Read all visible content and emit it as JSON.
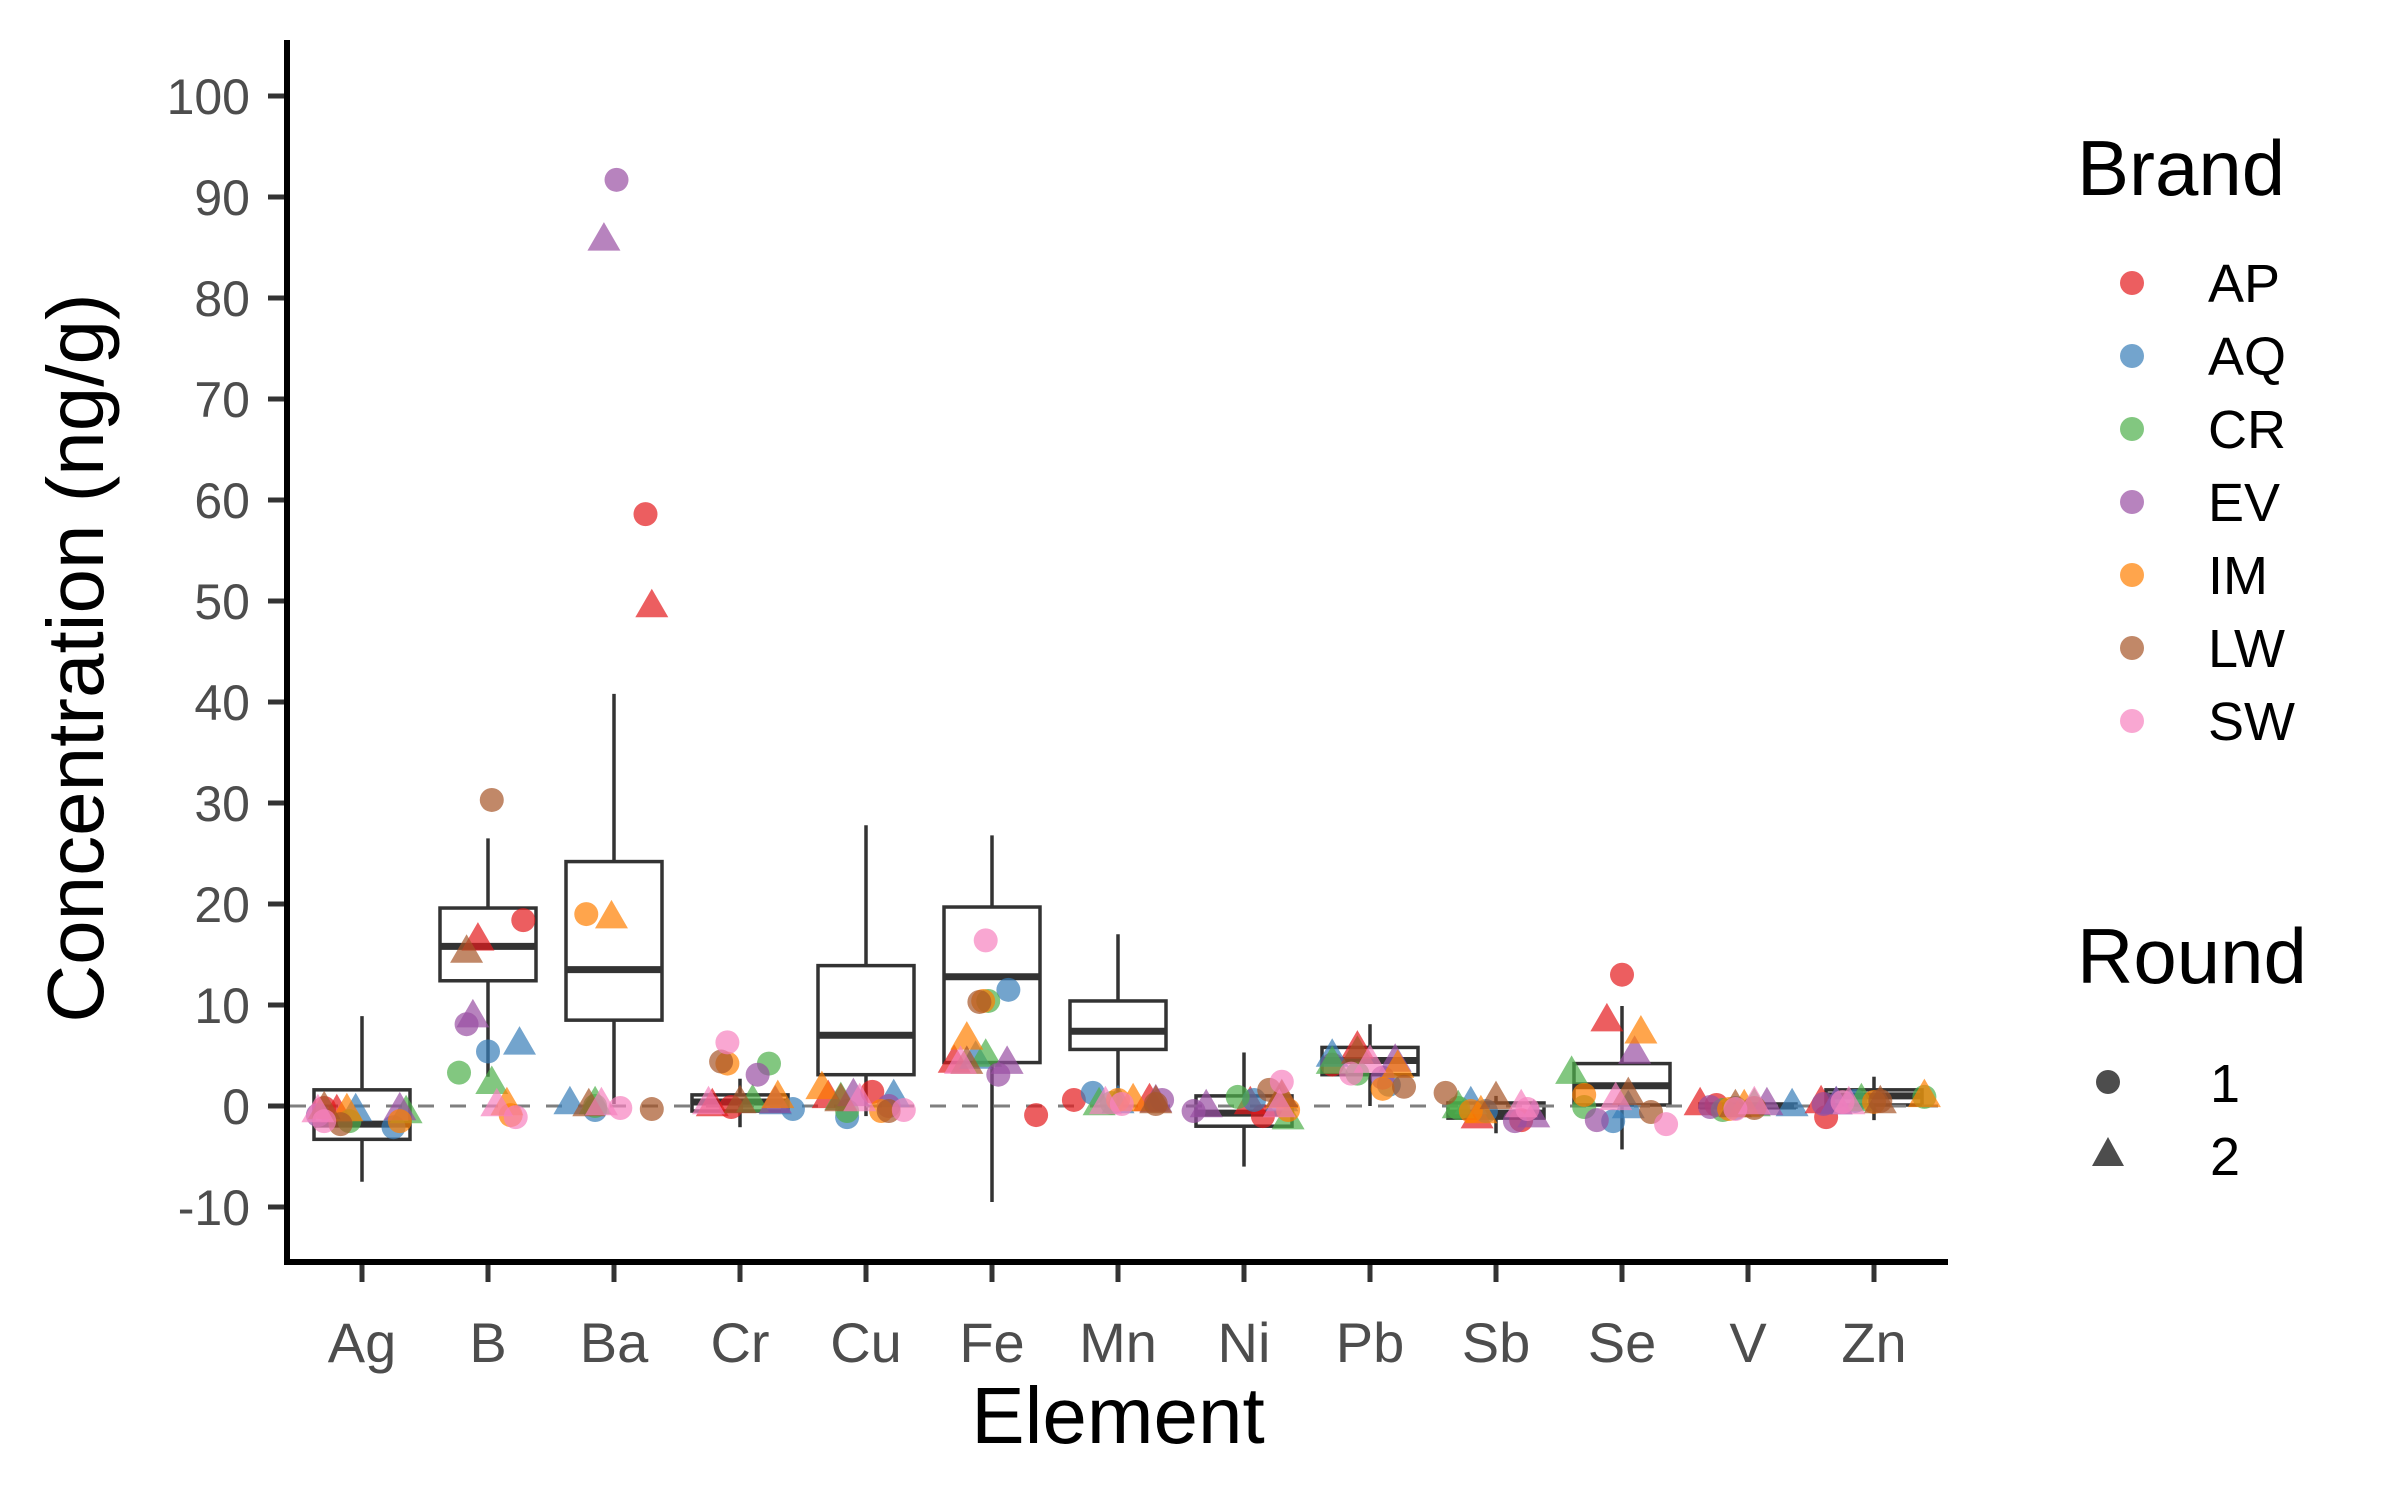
{
  "chart_data": {
    "type": "box+scatter",
    "title": "",
    "xlabel": "Element",
    "ylabel": "Concentration (ng/g)",
    "ylim": [
      -15.5,
      104.5
    ],
    "yticks": [
      -10,
      0,
      10,
      20,
      30,
      40,
      50,
      60,
      70,
      80,
      90,
      100
    ],
    "reference_line": {
      "y": 0,
      "style": "dashed",
      "color": "#7f7f7f"
    },
    "grid": false,
    "categories": [
      "Ag",
      "B",
      "Ba",
      "Cr",
      "Cu",
      "Fe",
      "Mn",
      "Ni",
      "Pb",
      "Sb",
      "Se",
      "V",
      "Zn"
    ],
    "boxes": [
      {
        "element": "Ag",
        "lower_whisker": -7.5,
        "q1": -3.3,
        "median": -1.8,
        "q3": 1.6,
        "upper_whisker": 8.9
      },
      {
        "element": "B",
        "lower_whisker": 2.9,
        "q1": 12.4,
        "median": 15.8,
        "q3": 19.6,
        "upper_whisker": 26.5
      },
      {
        "element": "Ba",
        "lower_whisker": 0.2,
        "q1": 8.5,
        "median": 13.5,
        "q3": 24.2,
        "upper_whisker": 40.8
      },
      {
        "element": "Cr",
        "lower_whisker": -2.1,
        "q1": -0.5,
        "median": 0.4,
        "q3": 1.1,
        "upper_whisker": 2.7
      },
      {
        "element": "Cu",
        "lower_whisker": -1.0,
        "q1": 3.1,
        "median": 7.0,
        "q3": 13.9,
        "upper_whisker": 27.8
      },
      {
        "element": "Fe",
        "lower_whisker": -9.5,
        "q1": 4.3,
        "median": 12.8,
        "q3": 19.7,
        "upper_whisker": 26.8
      },
      {
        "element": "Mn",
        "lower_whisker": 0.0,
        "q1": 5.6,
        "median": 7.4,
        "q3": 10.4,
        "upper_whisker": 17.0
      },
      {
        "element": "Ni",
        "lower_whisker": -6.0,
        "q1": -2.0,
        "median": -0.7,
        "q3": 1.0,
        "upper_whisker": 5.3
      },
      {
        "element": "Pb",
        "lower_whisker": 0.0,
        "q1": 3.1,
        "median": 4.5,
        "q3": 5.8,
        "upper_whisker": 8.1
      },
      {
        "element": "Sb",
        "lower_whisker": -2.7,
        "q1": -1.2,
        "median": -0.7,
        "q3": 0.3,
        "upper_whisker": 1.0
      },
      {
        "element": "Se",
        "lower_whisker": -4.3,
        "q1": 0.1,
        "median": 2.0,
        "q3": 4.2,
        "upper_whisker": 9.9
      },
      {
        "element": "V",
        "lower_whisker": -0.3,
        "q1": -0.1,
        "median": 0.0,
        "q3": 0.2,
        "upper_whisker": 0.4
      },
      {
        "element": "Zn",
        "lower_whisker": -1.4,
        "q1": 0.1,
        "median": 1.0,
        "q3": 1.6,
        "upper_whisker": 2.9
      }
    ],
    "point_fields": [
      "element",
      "brand",
      "round",
      "x_jitter",
      "value"
    ],
    "points": [
      [
        "Ag",
        "AP",
        1,
        -0.3,
        -0.2
      ],
      [
        "Ag",
        "AP",
        2,
        -0.2,
        -0.5
      ],
      [
        "Ag",
        "AQ",
        1,
        0.25,
        -2.1
      ],
      [
        "Ag",
        "AQ",
        2,
        -0.05,
        -0.4
      ],
      [
        "Ag",
        "CR",
        1,
        -0.1,
        -1.5
      ],
      [
        "Ag",
        "CR",
        2,
        0.35,
        -0.6
      ],
      [
        "Ag",
        "EV",
        1,
        -0.35,
        -0.9
      ],
      [
        "Ag",
        "EV",
        2,
        0.3,
        -0.3
      ],
      [
        "Ag",
        "IM",
        1,
        0.3,
        -1.5
      ],
      [
        "Ag",
        "IM",
        2,
        -0.12,
        -0.4
      ],
      [
        "Ag",
        "LW",
        1,
        -0.17,
        -1.8
      ],
      [
        "Ag",
        "LW",
        2,
        -0.3,
        -0.2
      ],
      [
        "Ag",
        "SW",
        1,
        -0.3,
        -1.5
      ],
      [
        "Ag",
        "SW",
        2,
        -0.35,
        -0.5
      ],
      [
        "B",
        "AP",
        1,
        0.28,
        18.4
      ],
      [
        "B",
        "AP",
        2,
        -0.08,
        16.5
      ],
      [
        "B",
        "AQ",
        1,
        0.0,
        5.4
      ],
      [
        "B",
        "AQ",
        2,
        0.25,
        6.2
      ],
      [
        "B",
        "CR",
        1,
        -0.23,
        3.3
      ],
      [
        "B",
        "CR",
        2,
        0.03,
        2.3
      ],
      [
        "B",
        "EV",
        1,
        -0.17,
        8.1
      ],
      [
        "B",
        "EV",
        2,
        -0.12,
        8.9
      ],
      [
        "B",
        "IM",
        1,
        0.18,
        -0.9
      ],
      [
        "B",
        "IM",
        2,
        0.15,
        0.2
      ],
      [
        "B",
        "LW",
        1,
        0.03,
        30.3
      ],
      [
        "B",
        "LW",
        2,
        -0.17,
        15.3
      ],
      [
        "B",
        "SW",
        1,
        0.22,
        -1.1
      ],
      [
        "B",
        "SW",
        2,
        0.07,
        0.1
      ],
      [
        "Ba",
        "AP",
        1,
        0.25,
        58.6
      ],
      [
        "Ba",
        "AP",
        2,
        0.3,
        49.5
      ],
      [
        "Ba",
        "AQ",
        1,
        -0.15,
        -0.4
      ],
      [
        "Ba",
        "AQ",
        2,
        -0.35,
        0.3
      ],
      [
        "Ba",
        "CR",
        1,
        -0.15,
        0.0
      ],
      [
        "Ba",
        "CR",
        2,
        -0.15,
        0.3
      ],
      [
        "Ba",
        "EV",
        1,
        0.02,
        91.7
      ],
      [
        "Ba",
        "EV",
        2,
        -0.08,
        85.8
      ],
      [
        "Ba",
        "IM",
        1,
        -0.22,
        19.0
      ],
      [
        "Ba",
        "IM",
        2,
        -0.02,
        18.7
      ],
      [
        "Ba",
        "LW",
        1,
        0.3,
        -0.3
      ],
      [
        "Ba",
        "LW",
        2,
        -0.2,
        0.1
      ],
      [
        "Ba",
        "SW",
        1,
        0.05,
        -0.2
      ],
      [
        "Ba",
        "SW",
        2,
        -0.1,
        0.2
      ],
      [
        "Cr",
        "AP",
        1,
        -0.07,
        -0.1
      ],
      [
        "Cr",
        "AP",
        2,
        -0.22,
        0.1
      ],
      [
        "Cr",
        "AQ",
        1,
        0.42,
        -0.3
      ],
      [
        "Cr",
        "AQ",
        2,
        0.28,
        0.3
      ],
      [
        "Cr",
        "CR",
        1,
        0.23,
        4.2
      ],
      [
        "Cr",
        "CR",
        2,
        0.1,
        0.5
      ],
      [
        "Cr",
        "EV",
        1,
        0.14,
        3.1
      ],
      [
        "Cr",
        "EV",
        2,
        0.28,
        0.4
      ],
      [
        "Cr",
        "IM",
        1,
        -0.1,
        4.2
      ],
      [
        "Cr",
        "IM",
        2,
        0.3,
        0.9
      ],
      [
        "Cr",
        "LW",
        1,
        -0.15,
        4.4
      ],
      [
        "Cr",
        "LW",
        2,
        0.0,
        0.4
      ],
      [
        "Cr",
        "SW",
        1,
        -0.1,
        6.3
      ],
      [
        "Cr",
        "SW",
        2,
        -0.25,
        0.3
      ],
      [
        "Cu",
        "AP",
        1,
        0.05,
        1.4
      ],
      [
        "Cu",
        "AP",
        2,
        -0.3,
        0.9
      ],
      [
        "Cu",
        "AQ",
        1,
        -0.15,
        -1.1
      ],
      [
        "Cu",
        "AQ",
        2,
        0.22,
        1.0
      ],
      [
        "Cu",
        "CR",
        1,
        -0.15,
        -0.5
      ],
      [
        "Cu",
        "CR",
        2,
        -0.2,
        0.7
      ],
      [
        "Cu",
        "EV",
        1,
        0.18,
        0.0
      ],
      [
        "Cu",
        "EV",
        2,
        -0.1,
        1.1
      ],
      [
        "Cu",
        "IM",
        1,
        0.12,
        -0.5
      ],
      [
        "Cu",
        "IM",
        2,
        -0.35,
        1.8
      ],
      [
        "Cu",
        "LW",
        1,
        0.18,
        -0.5
      ],
      [
        "Cu",
        "LW",
        2,
        -0.2,
        0.6
      ],
      [
        "Cu",
        "SW",
        1,
        0.3,
        -0.4
      ],
      [
        "Cu",
        "SW",
        2,
        -0.05,
        0.6
      ],
      [
        "Fe",
        "AP",
        1,
        0.35,
        -0.9
      ],
      [
        "Fe",
        "AP",
        2,
        -0.3,
        4.4
      ],
      [
        "Fe",
        "AQ",
        1,
        0.13,
        11.5
      ],
      [
        "Fe",
        "AQ",
        2,
        -0.13,
        4.8
      ],
      [
        "Fe",
        "CR",
        1,
        -0.03,
        10.4
      ],
      [
        "Fe",
        "CR",
        2,
        -0.05,
        5.0
      ],
      [
        "Fe",
        "EV",
        1,
        0.05,
        3.1
      ],
      [
        "Fe",
        "EV",
        2,
        0.12,
        4.3
      ],
      [
        "Fe",
        "IM",
        1,
        -0.07,
        10.4
      ],
      [
        "Fe",
        "IM",
        2,
        -0.2,
        6.7
      ],
      [
        "Fe",
        "LW",
        1,
        -0.1,
        10.3
      ],
      [
        "Fe",
        "LW",
        2,
        -0.2,
        4.3
      ],
      [
        "Fe",
        "SW",
        1,
        -0.05,
        16.4
      ],
      [
        "Fe",
        "SW",
        2,
        -0.25,
        4.3
      ],
      [
        "Mn",
        "AP",
        1,
        -0.35,
        0.6
      ],
      [
        "Mn",
        "AP",
        2,
        0.25,
        0.6
      ],
      [
        "Mn",
        "AQ",
        1,
        -0.2,
        1.3
      ],
      [
        "Mn",
        "AQ",
        2,
        0.0,
        0.4
      ],
      [
        "Mn",
        "CR",
        1,
        -0.05,
        0.3
      ],
      [
        "Mn",
        "CR",
        2,
        -0.15,
        0.2
      ],
      [
        "Mn",
        "EV",
        1,
        0.35,
        0.6
      ],
      [
        "Mn",
        "EV",
        2,
        0.3,
        0.5
      ],
      [
        "Mn",
        "IM",
        1,
        0.0,
        0.6
      ],
      [
        "Mn",
        "IM",
        2,
        0.12,
        0.6
      ],
      [
        "Mn",
        "LW",
        1,
        0.3,
        0.2
      ],
      [
        "Mn",
        "LW",
        2,
        0.3,
        0.4
      ],
      [
        "Mn",
        "SW",
        1,
        0.03,
        0.2
      ],
      [
        "Mn",
        "SW",
        2,
        -0.1,
        0.3
      ],
      [
        "Ni",
        "AP",
        1,
        0.15,
        -1.0
      ],
      [
        "Ni",
        "AP",
        2,
        0.05,
        0.3
      ],
      [
        "Ni",
        "AQ",
        1,
        0.08,
        0.6
      ],
      [
        "Ni",
        "AQ",
        2,
        0.3,
        0.6
      ],
      [
        "Ni",
        "CR",
        1,
        -0.05,
        0.9
      ],
      [
        "Ni",
        "CR",
        2,
        0.35,
        -1.2
      ],
      [
        "Ni",
        "EV",
        1,
        -0.4,
        -0.5
      ],
      [
        "Ni",
        "EV",
        2,
        -0.3,
        0.0
      ],
      [
        "Ni",
        "IM",
        1,
        0.35,
        -0.4
      ],
      [
        "Ni",
        "IM",
        2,
        0.3,
        0.9
      ],
      [
        "Ni",
        "LW",
        1,
        0.2,
        1.6
      ],
      [
        "Ni",
        "LW",
        2,
        0.3,
        1.0
      ],
      [
        "Ni",
        "SW",
        1,
        0.3,
        2.4
      ],
      [
        "Ni",
        "SW",
        2,
        0.28,
        0.0
      ],
      [
        "Pb",
        "AP",
        1,
        -0.3,
        4.1
      ],
      [
        "Pb",
        "AP",
        2,
        -0.1,
        5.8
      ],
      [
        "Pb",
        "AQ",
        1,
        0.15,
        2.1
      ],
      [
        "Pb",
        "AQ",
        2,
        -0.3,
        5.0
      ],
      [
        "Pb",
        "CR",
        1,
        -0.1,
        3.2
      ],
      [
        "Pb",
        "CR",
        2,
        -0.3,
        4.3
      ],
      [
        "Pb",
        "EV",
        1,
        0.1,
        2.8
      ],
      [
        "Pb",
        "EV",
        2,
        0.2,
        4.5
      ],
      [
        "Pb",
        "IM",
        1,
        0.1,
        1.7
      ],
      [
        "Pb",
        "IM",
        2,
        0.22,
        3.9
      ],
      [
        "Pb",
        "LW",
        1,
        0.27,
        1.9
      ],
      [
        "Pb",
        "LW",
        2,
        -0.1,
        5.3
      ],
      [
        "Pb",
        "SW",
        1,
        -0.15,
        3.2
      ],
      [
        "Pb",
        "SW",
        2,
        0.0,
        4.4
      ],
      [
        "Sb",
        "AP",
        1,
        0.2,
        -1.4
      ],
      [
        "Sb",
        "AP",
        2,
        -0.15,
        -1.1
      ],
      [
        "Sb",
        "AQ",
        1,
        -0.08,
        -0.5
      ],
      [
        "Sb",
        "AQ",
        2,
        -0.2,
        0.3
      ],
      [
        "Sb",
        "CR",
        1,
        -0.3,
        -0.2
      ],
      [
        "Sb",
        "CR",
        2,
        -0.3,
        -0.1
      ],
      [
        "Sb",
        "EV",
        1,
        0.15,
        -1.5
      ],
      [
        "Sb",
        "EV",
        2,
        0.3,
        -1.0
      ],
      [
        "Sb",
        "IM",
        1,
        -0.2,
        -0.5
      ],
      [
        "Sb",
        "IM",
        2,
        -0.12,
        -0.6
      ],
      [
        "Sb",
        "LW",
        1,
        -0.4,
        1.3
      ],
      [
        "Sb",
        "LW",
        2,
        0.0,
        0.8
      ],
      [
        "Sb",
        "SW",
        1,
        0.25,
        -0.3
      ],
      [
        "Sb",
        "SW",
        2,
        0.2,
        0.0
      ],
      [
        "Se",
        "AP",
        1,
        0.0,
        13.0
      ],
      [
        "Se",
        "AP",
        2,
        -0.12,
        8.5
      ],
      [
        "Se",
        "AQ",
        1,
        -0.07,
        -1.5
      ],
      [
        "Se",
        "AQ",
        2,
        0.05,
        -0.1
      ],
      [
        "Se",
        "CR",
        1,
        -0.3,
        -0.1
      ],
      [
        "Se",
        "CR",
        2,
        -0.4,
        3.3
      ],
      [
        "Se",
        "EV",
        1,
        -0.2,
        -1.4
      ],
      [
        "Se",
        "EV",
        2,
        0.1,
        5.3
      ],
      [
        "Se",
        "IM",
        1,
        -0.3,
        1.1
      ],
      [
        "Se",
        "IM",
        2,
        0.15,
        7.3
      ],
      [
        "Se",
        "LW",
        1,
        0.23,
        -0.6
      ],
      [
        "Se",
        "LW",
        2,
        0.05,
        1.2
      ],
      [
        "Se",
        "SW",
        1,
        0.35,
        -1.8
      ],
      [
        "Se",
        "SW",
        2,
        -0.05,
        0.7
      ],
      [
        "V",
        "AP",
        1,
        -0.25,
        0.1
      ],
      [
        "V",
        "AP",
        2,
        -0.38,
        0.2
      ],
      [
        "V",
        "AQ",
        1,
        -0.1,
        -0.2
      ],
      [
        "V",
        "AQ",
        2,
        0.35,
        0.1
      ],
      [
        "V",
        "CR",
        1,
        -0.2,
        -0.4
      ],
      [
        "V",
        "CR",
        2,
        0.05,
        0.1
      ],
      [
        "V",
        "EV",
        1,
        -0.3,
        -0.1
      ],
      [
        "V",
        "EV",
        2,
        0.15,
        0.2
      ],
      [
        "V",
        "IM",
        1,
        -0.15,
        -0.3
      ],
      [
        "V",
        "IM",
        2,
        -0.03,
        0.0
      ],
      [
        "V",
        "LW",
        1,
        0.05,
        -0.2
      ],
      [
        "V",
        "LW",
        2,
        -0.1,
        0.0
      ],
      [
        "V",
        "SW",
        1,
        -0.1,
        -0.3
      ],
      [
        "V",
        "SW",
        2,
        0.05,
        0.3
      ],
      [
        "Zn",
        "AP",
        1,
        -0.38,
        -1.1
      ],
      [
        "Zn",
        "AP",
        2,
        -0.42,
        0.4
      ],
      [
        "Zn",
        "AQ",
        1,
        -0.15,
        0.5
      ],
      [
        "Zn",
        "AQ",
        2,
        -0.3,
        0.3
      ],
      [
        "Zn",
        "CR",
        1,
        0.4,
        0.9
      ],
      [
        "Zn",
        "CR",
        2,
        -0.1,
        0.6
      ],
      [
        "Zn",
        "EV",
        1,
        -0.4,
        0.2
      ],
      [
        "Zn",
        "EV",
        2,
        -0.3,
        0.3
      ],
      [
        "Zn",
        "IM",
        1,
        0.0,
        0.4
      ],
      [
        "Zn",
        "IM",
        2,
        0.4,
        1.0
      ],
      [
        "Zn",
        "LW",
        1,
        0.05,
        0.5
      ],
      [
        "Zn",
        "LW",
        2,
        0.05,
        0.4
      ],
      [
        "Zn",
        "SW",
        1,
        -0.25,
        0.4
      ],
      [
        "Zn",
        "SW",
        2,
        -0.2,
        0.3
      ]
    ],
    "legend": {
      "placement": "right",
      "brand": {
        "title": "Brand",
        "items": [
          {
            "label": "AP",
            "color": "#E41A1C"
          },
          {
            "label": "AQ",
            "color": "#377EB8"
          },
          {
            "label": "CR",
            "color": "#4DAF4A"
          },
          {
            "label": "EV",
            "color": "#984EA3"
          },
          {
            "label": "IM",
            "color": "#FF7F00"
          },
          {
            "label": "LW",
            "color": "#A65628"
          },
          {
            "label": "SW",
            "color": "#F781BF"
          }
        ]
      },
      "round": {
        "title": "Round",
        "items": [
          {
            "label": "1",
            "shape": "circle"
          },
          {
            "label": "2",
            "shape": "triangle"
          }
        ]
      }
    },
    "point_alpha": 0.7
  }
}
